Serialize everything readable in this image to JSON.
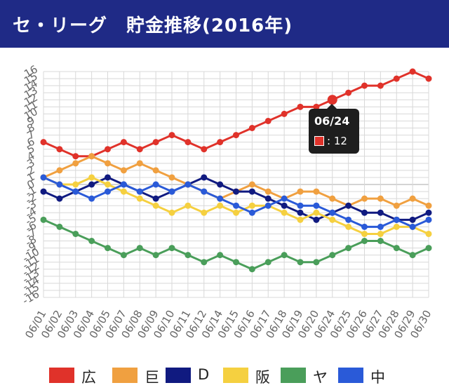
{
  "header": {
    "title": "セ・リーグ　貯金推移(2016年)"
  },
  "tooltip": {
    "date": "06/24",
    "value_text": ": 12",
    "series_color": "#e0322a"
  },
  "chart_data": {
    "type": "line",
    "title": "セ・リーグ　貯金推移(2016年)",
    "xlabel": "",
    "ylabel": "",
    "x": [
      "06/01",
      "06/02",
      "06/03",
      "06/04",
      "06/05",
      "06/07",
      "06/08",
      "06/09",
      "06/10",
      "06/11",
      "06/12",
      "06/14",
      "06/15",
      "06/16",
      "06/17",
      "06/18",
      "06/19",
      "06/20",
      "06/24",
      "06/25",
      "06/26",
      "06/27",
      "06/28",
      "06/29",
      "06/30"
    ],
    "ylim": [
      -16,
      16
    ],
    "yticks": [
      -16,
      -15,
      -14,
      -13,
      -12,
      -11,
      -10,
      -9,
      -8,
      -7,
      -6,
      -5,
      -4,
      -3,
      -2,
      -1,
      0,
      1,
      2,
      3,
      4,
      5,
      6,
      7,
      8,
      9,
      10,
      11,
      12,
      13,
      14,
      15,
      16
    ],
    "grid": true,
    "legend_position": "bottom",
    "series": [
      {
        "name": "広",
        "color": "#e0322a",
        "values": [
          6,
          5,
          4,
          4,
          5,
          6,
          5,
          6,
          7,
          6,
          5,
          6,
          7,
          8,
          9,
          10,
          11,
          11,
          12,
          13,
          14,
          14,
          15,
          16,
          15
        ]
      },
      {
        "name": "巨",
        "color": "#f0a040",
        "values": [
          1,
          2,
          3,
          4,
          3,
          2,
          3,
          2,
          1,
          0,
          -1,
          -2,
          -1,
          0,
          -1,
          -2,
          -1,
          -1,
          -2,
          -3,
          -2,
          -2,
          -3,
          -2,
          -3
        ]
      },
      {
        "name": "D",
        "color": "#101a80",
        "values": [
          -1,
          -2,
          -1,
          0,
          1,
          0,
          -1,
          -2,
          -1,
          0,
          1,
          0,
          -1,
          -1,
          -2,
          -3,
          -4,
          -5,
          -4,
          -3,
          -4,
          -4,
          -5,
          -5,
          -4
        ]
      },
      {
        "name": "阪",
        "color": "#f5d040",
        "values": [
          1,
          0,
          0,
          1,
          0,
          -1,
          -2,
          -3,
          -4,
          -3,
          -4,
          -3,
          -4,
          -3,
          -3,
          -4,
          -5,
          -4,
          -5,
          -6,
          -7,
          -7,
          -6,
          -6,
          -7
        ]
      },
      {
        "name": "ヤ",
        "color": "#4a9e5a",
        "values": [
          -5,
          -6,
          -7,
          -8,
          -9,
          -10,
          -9,
          -10,
          -9,
          -10,
          -11,
          -10,
          -11,
          -12,
          -11,
          -10,
          -11,
          -11,
          -10,
          -9,
          -8,
          -8,
          -9,
          -10,
          -9
        ]
      },
      {
        "name": "中",
        "color": "#2a5ad8",
        "values": [
          1,
          0,
          -1,
          -2,
          -1,
          0,
          -1,
          0,
          -1,
          0,
          -1,
          -2,
          -3,
          -4,
          -3,
          -2,
          -3,
          -3,
          -4,
          -5,
          -6,
          -6,
          -5,
          -6,
          -5
        ]
      }
    ],
    "highlight": {
      "series": "広",
      "x": "06/24",
      "value": 12
    }
  }
}
